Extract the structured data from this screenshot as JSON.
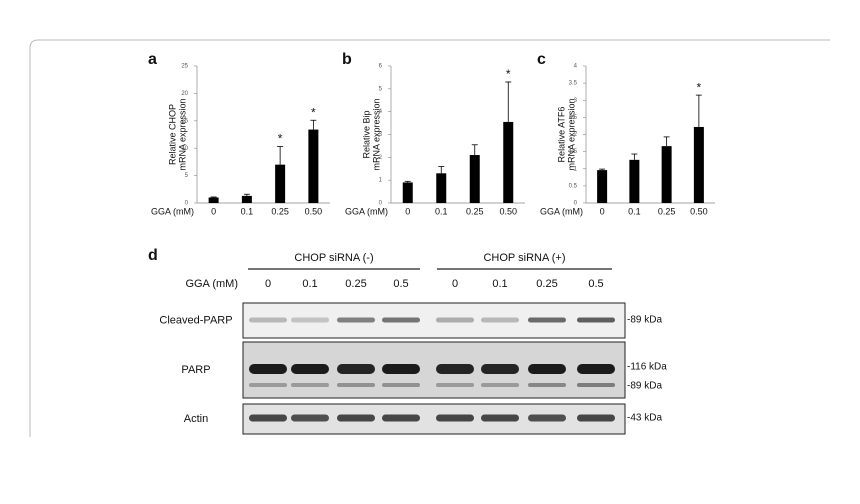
{
  "chart_data": [
    {
      "type": "bar",
      "panel": "a",
      "ylabel": [
        "Relative CHOP",
        "mRNA expression"
      ],
      "xlabel": "GGA (mM)",
      "categories": [
        "0",
        "0.1",
        "0.25",
        "0.50"
      ],
      "values": [
        1.0,
        1.3,
        7.0,
        13.4
      ],
      "errors": [
        0.1,
        0.3,
        3.3,
        1.7
      ],
      "significance": [
        null,
        null,
        "*",
        "*"
      ],
      "color": "#000000",
      "ylim": [
        0,
        25
      ],
      "yticks": [
        0,
        5,
        10,
        15,
        20,
        25
      ]
    },
    {
      "type": "bar",
      "panel": "b",
      "ylabel": [
        "Relative Bip",
        "mRNA expression"
      ],
      "xlabel": "GGA (mM)",
      "categories": [
        "0",
        "0.1",
        "0.25",
        "0.50"
      ],
      "values": [
        0.9,
        1.3,
        2.1,
        3.55
      ],
      "errors": [
        0.05,
        0.3,
        0.45,
        1.75
      ],
      "significance": [
        null,
        null,
        null,
        "*"
      ],
      "color": "#000000",
      "ylim": [
        0,
        6
      ],
      "yticks": [
        0,
        1,
        2,
        3,
        4,
        5,
        6
      ]
    },
    {
      "type": "bar",
      "panel": "c",
      "ylabel": [
        "Relative ATF6",
        "mRNA expression"
      ],
      "xlabel": "GGA (mM)",
      "categories": [
        "0",
        "0.1",
        "0.25",
        "0.50"
      ],
      "values": [
        0.96,
        1.26,
        1.66,
        2.22
      ],
      "errors": [
        0.03,
        0.17,
        0.27,
        0.93
      ],
      "significance": [
        null,
        null,
        null,
        "*"
      ],
      "color": "#000000",
      "ylim": [
        0,
        4
      ],
      "yticks": [
        0,
        0.5,
        1,
        1.5,
        2,
        2.5,
        3,
        3.5,
        4
      ]
    }
  ],
  "blot": {
    "panel": "d",
    "groups": [
      "CHOP siRNA (-)",
      "CHOP siRNA (+)"
    ],
    "lane_label": "GGA (mM)",
    "lanes": [
      "0",
      "0.1",
      "0.25",
      "0.5",
      "0",
      "0.1",
      "0.25",
      "0.5"
    ],
    "rows": [
      {
        "name": "Cleaved-PARP",
        "markers": [
          "-89 kDa"
        ]
      },
      {
        "name": "PARP",
        "markers": [
          "-116 kDa",
          "-89 kDa"
        ]
      },
      {
        "name": "Actin",
        "markers": [
          "-43 kDa"
        ]
      }
    ]
  }
}
